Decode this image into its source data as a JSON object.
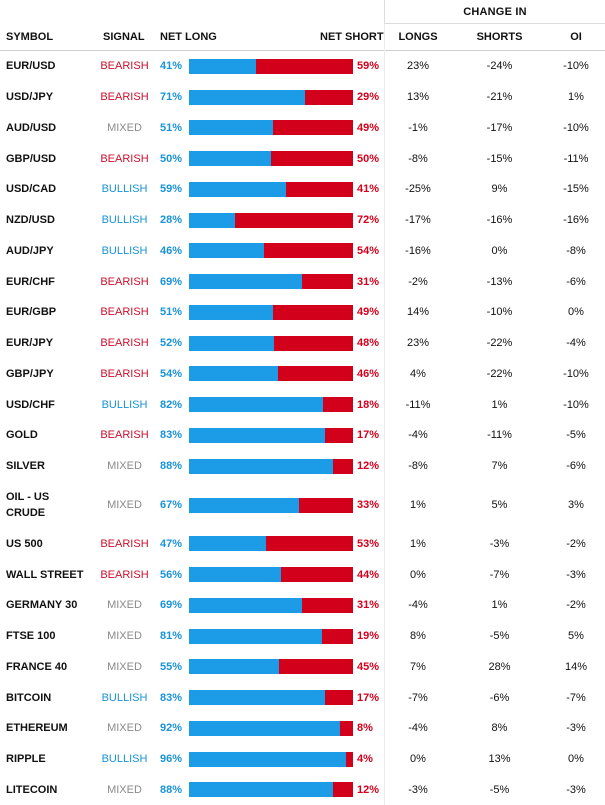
{
  "group_header": "CHANGE IN",
  "columns": {
    "symbol": "SYMBOL",
    "signal": "SIGNAL",
    "net_long": "NET LONG",
    "net_short": "NET SHORT",
    "longs": "LONGS",
    "shorts": "SHORTS",
    "oi": "OI"
  },
  "colors": {
    "long": "#1c9be6",
    "short": "#d2001b",
    "bearish": "#c8102e",
    "bullish": "#1a93d6",
    "mixed": "#8a8a8a"
  },
  "rows": [
    {
      "symbol": "EUR/USD",
      "signal": "BEARISH",
      "net_long": 41,
      "net_long_label": "41%",
      "net_short_label": "59%",
      "longs": "23%",
      "shorts": "-24%",
      "oi": "-10%"
    },
    {
      "symbol": "USD/JPY",
      "signal": "BEARISH",
      "net_long": 71,
      "net_long_label": "71%",
      "net_short_label": "29%",
      "longs": "13%",
      "shorts": "-21%",
      "oi": "1%"
    },
    {
      "symbol": "AUD/USD",
      "signal": "MIXED",
      "net_long": 51,
      "net_long_label": "51%",
      "net_short_label": "49%",
      "longs": "-1%",
      "shorts": "-17%",
      "oi": "-10%"
    },
    {
      "symbol": "GBP/USD",
      "signal": "BEARISH",
      "net_long": 50,
      "net_long_label": "50%",
      "net_short_label": "50%",
      "longs": "-8%",
      "shorts": "-15%",
      "oi": "-11%"
    },
    {
      "symbol": "USD/CAD",
      "signal": "BULLISH",
      "net_long": 59,
      "net_long_label": "59%",
      "net_short_label": "41%",
      "longs": "-25%",
      "shorts": "9%",
      "oi": "-15%"
    },
    {
      "symbol": "NZD/USD",
      "signal": "BULLISH",
      "net_long": 28,
      "net_long_label": "28%",
      "net_short_label": "72%",
      "longs": "-17%",
      "shorts": "-16%",
      "oi": "-16%"
    },
    {
      "symbol": "AUD/JPY",
      "signal": "BULLISH",
      "net_long": 46,
      "net_long_label": "46%",
      "net_short_label": "54%",
      "longs": "-16%",
      "shorts": "0%",
      "oi": "-8%"
    },
    {
      "symbol": "EUR/CHF",
      "signal": "BEARISH",
      "net_long": 69,
      "net_long_label": "69%",
      "net_short_label": "31%",
      "longs": "-2%",
      "shorts": "-13%",
      "oi": "-6%"
    },
    {
      "symbol": "EUR/GBP",
      "signal": "BEARISH",
      "net_long": 51,
      "net_long_label": "51%",
      "net_short_label": "49%",
      "longs": "14%",
      "shorts": "-10%",
      "oi": "0%"
    },
    {
      "symbol": "EUR/JPY",
      "signal": "BEARISH",
      "net_long": 52,
      "net_long_label": "52%",
      "net_short_label": "48%",
      "longs": "23%",
      "shorts": "-22%",
      "oi": "-4%"
    },
    {
      "symbol": "GBP/JPY",
      "signal": "BEARISH",
      "net_long": 54,
      "net_long_label": "54%",
      "net_short_label": "46%",
      "longs": "4%",
      "shorts": "-22%",
      "oi": "-10%"
    },
    {
      "symbol": "USD/CHF",
      "signal": "BULLISH",
      "net_long": 82,
      "net_long_label": "82%",
      "net_short_label": "18%",
      "longs": "-11%",
      "shorts": "1%",
      "oi": "-10%"
    },
    {
      "symbol": "GOLD",
      "signal": "BEARISH",
      "net_long": 83,
      "net_long_label": "83%",
      "net_short_label": "17%",
      "longs": "-4%",
      "shorts": "-11%",
      "oi": "-5%"
    },
    {
      "symbol": "SILVER",
      "signal": "MIXED",
      "net_long": 88,
      "net_long_label": "88%",
      "net_short_label": "12%",
      "longs": "-8%",
      "shorts": "7%",
      "oi": "-6%"
    },
    {
      "symbol": "OIL - US CRUDE",
      "signal": "MIXED",
      "net_long": 67,
      "net_long_label": "67%",
      "net_short_label": "33%",
      "longs": "1%",
      "shorts": "5%",
      "oi": "3%",
      "tall": true
    },
    {
      "symbol": "US 500",
      "signal": "BEARISH",
      "net_long": 47,
      "net_long_label": "47%",
      "net_short_label": "53%",
      "longs": "1%",
      "shorts": "-3%",
      "oi": "-2%"
    },
    {
      "symbol": "WALL STREET",
      "signal": "BEARISH",
      "net_long": 56,
      "net_long_label": "56%",
      "net_short_label": "44%",
      "longs": "0%",
      "shorts": "-7%",
      "oi": "-3%"
    },
    {
      "symbol": "GERMANY 30",
      "signal": "MIXED",
      "net_long": 69,
      "net_long_label": "69%",
      "net_short_label": "31%",
      "longs": "-4%",
      "shorts": "1%",
      "oi": "-2%"
    },
    {
      "symbol": "FTSE 100",
      "signal": "MIXED",
      "net_long": 81,
      "net_long_label": "81%",
      "net_short_label": "19%",
      "longs": "8%",
      "shorts": "-5%",
      "oi": "5%"
    },
    {
      "symbol": "FRANCE 40",
      "signal": "MIXED",
      "net_long": 55,
      "net_long_label": "55%",
      "net_short_label": "45%",
      "longs": "7%",
      "shorts": "28%",
      "oi": "14%"
    },
    {
      "symbol": "BITCOIN",
      "signal": "BULLISH",
      "net_long": 83,
      "net_long_label": "83%",
      "net_short_label": "17%",
      "longs": "-7%",
      "shorts": "-6%",
      "oi": "-7%"
    },
    {
      "symbol": "ETHEREUM",
      "signal": "MIXED",
      "net_long": 92,
      "net_long_label": "92%",
      "net_short_label": "8%",
      "longs": "-4%",
      "shorts": "8%",
      "oi": "-3%"
    },
    {
      "symbol": "RIPPLE",
      "signal": "BULLISH",
      "net_long": 96,
      "net_long_label": "96%",
      "net_short_label": "4%",
      "longs": "0%",
      "shorts": "13%",
      "oi": "0%"
    },
    {
      "symbol": "LITECOIN",
      "signal": "MIXED",
      "net_long": 88,
      "net_long_label": "88%",
      "net_short_label": "12%",
      "longs": "-3%",
      "shorts": "-5%",
      "oi": "-3%"
    }
  ]
}
